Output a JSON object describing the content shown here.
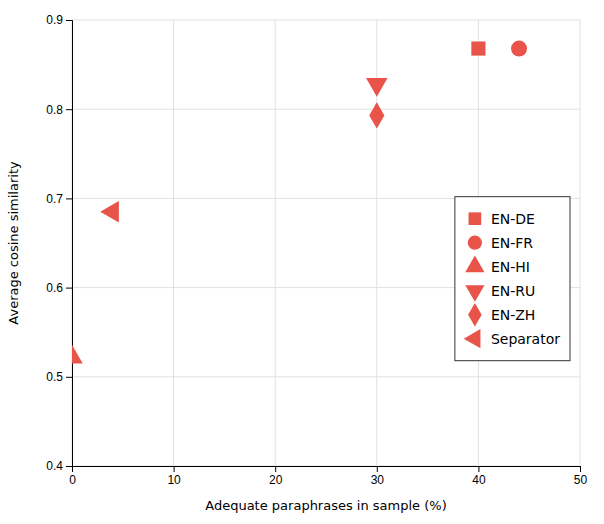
{
  "chart_data": {
    "type": "scatter",
    "xlabel": "Adequate paraphrases in sample (%)",
    "ylabel": "Average cosine similarity",
    "series": [
      {
        "name": "EN-DE",
        "color": "#e8534a",
        "marker": "square",
        "x": [
          40
        ],
        "values": [
          0.868
        ]
      },
      {
        "name": "EN-FR",
        "color": "#e8534a",
        "marker": "circle",
        "x": [
          44
        ],
        "values": [
          0.868
        ]
      },
      {
        "name": "EN-HI",
        "color": "#e8534a",
        "marker": "triangle-up",
        "x": [
          0
        ],
        "values": [
          0.522
        ]
      },
      {
        "name": "EN-RU",
        "color": "#e8534a",
        "marker": "triangle-down",
        "x": [
          30
        ],
        "values": [
          0.828
        ]
      },
      {
        "name": "EN-ZH",
        "color": "#e8534a",
        "marker": "diamond",
        "x": [
          30
        ],
        "values": [
          0.793
        ]
      },
      {
        "name": "Separator",
        "color": "#e8534a",
        "marker": "triangle-left",
        "x": [
          4
        ],
        "values": [
          0.685
        ]
      }
    ],
    "xlim": [
      0,
      50
    ],
    "ylim": [
      0.4,
      0.9
    ],
    "xticks": [
      0,
      10,
      20,
      30,
      40,
      50
    ],
    "yticks": [
      0.4,
      0.5,
      0.6,
      0.7,
      0.8,
      0.9
    ],
    "grid": true,
    "legend": "right"
  }
}
